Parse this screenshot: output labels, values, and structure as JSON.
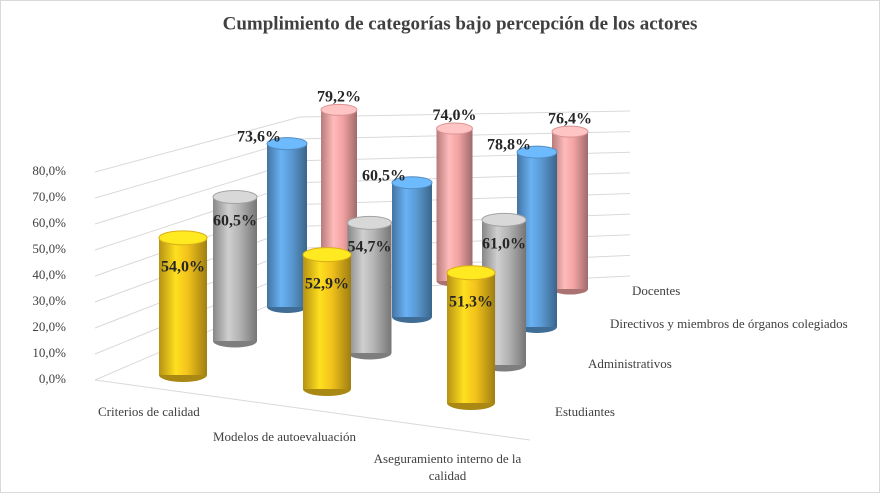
{
  "chart_data": {
    "type": "bar3d",
    "title": "Cumplimiento de categorías bajo percepción de los actores",
    "categories": [
      "Criterios de calidad",
      "Modelos de autoevaluación",
      "Aseguramiento interno de la calidad"
    ],
    "series": [
      {
        "name": "Estudiantes",
        "color": "#f2c21b",
        "values": [
          54.0,
          52.9,
          51.3
        ],
        "value_labels": [
          "54,0%",
          "52,9%",
          "51,3%"
        ]
      },
      {
        "name": "Administrativos",
        "color": "#b4b4b4",
        "values": [
          60.5,
          54.7,
          61.0
        ],
        "value_labels": [
          "60,5%",
          "54,7%",
          "61,0%"
        ]
      },
      {
        "name": "Directivos y miembros de órganos colegiados",
        "color": "#5b9bd5",
        "values": [
          73.6,
          60.5,
          78.8
        ],
        "value_labels": [
          "73,6%",
          "60,5%",
          "78,8%"
        ]
      },
      {
        "name": "Docentes",
        "color": "#f4a3a3",
        "values": [
          79.2,
          74.0,
          76.4
        ],
        "value_labels": [
          "79,2%",
          "74,0%",
          "76,4%"
        ]
      }
    ],
    "ylim": [
      0,
      80
    ],
    "yticks": [
      {
        "value": 0,
        "label": "0,0%"
      },
      {
        "value": 10,
        "label": "10,0%"
      },
      {
        "value": 20,
        "label": "20,0%"
      },
      {
        "value": 30,
        "label": "30,0%"
      },
      {
        "value": 40,
        "label": "40,0%"
      },
      {
        "value": 50,
        "label": "50,0%"
      },
      {
        "value": 60,
        "label": "60,0%"
      },
      {
        "value": 70,
        "label": "70,0%"
      },
      {
        "value": 80,
        "label": "80,0%"
      }
    ],
    "grid": true
  }
}
